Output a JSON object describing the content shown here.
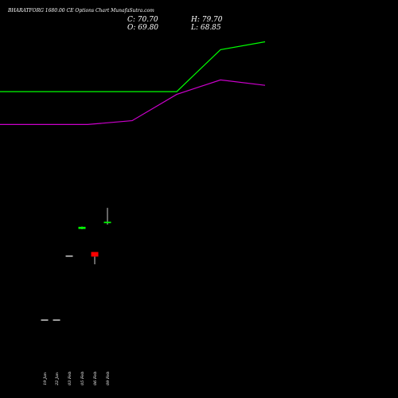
{
  "header": {
    "title": "BHARATFORG 1680.00  CE Options  Chart MunafaSutra.com",
    "close": "C: 70.70",
    "high": "H: 79.70",
    "open": "O: 69.80",
    "low": "L: 68.85"
  },
  "colors": {
    "background": "#000000",
    "ma_fast": "#00ff00",
    "ma_slow": "#cc00cc",
    "up_candle": "#00ff00",
    "down_candle": "#ff0000",
    "flat_candle": "#ffffff"
  },
  "chart_data": {
    "type": "candlestick",
    "grid": false,
    "x_ticks": [
      "19 Jan",
      "22 Jan",
      "03 Feb",
      "05 Feb",
      "06 Feb",
      "09 Feb"
    ],
    "candles": [
      {
        "date": "19 Jan",
        "open": 7.0,
        "high": 7.0,
        "low": 7.0,
        "close": 7.0
      },
      {
        "date": "22 Jan",
        "open": 7.0,
        "high": 7.0,
        "low": 7.0,
        "close": 7.0
      },
      {
        "date": "03 Feb",
        "open": 48.6,
        "high": 48.6,
        "low": 48.6,
        "close": 48.6
      },
      {
        "date": "05 Feb",
        "open": 66.0,
        "high": 67.6,
        "low": 65.8,
        "close": 67.4
      },
      {
        "date": "06 Feb",
        "open": 51.0,
        "high": 51.0,
        "low": 43.0,
        "close": 48.0
      },
      {
        "date": "09 Feb",
        "open": 69.8,
        "high": 79.7,
        "low": 68.85,
        "close": 70.7
      }
    ],
    "series": [
      {
        "values": [
          155.4,
          155.4,
          155.4,
          155.4,
          155.4,
          182.7,
          187.8,
          182.7,
          187.8
        ]
      },
      {
        "values": [
          134.0,
          134.0,
          134.0,
          136.5,
          153.6,
          163.0,
          159.5,
          157.7,
          163.0
        ]
      }
    ]
  }
}
